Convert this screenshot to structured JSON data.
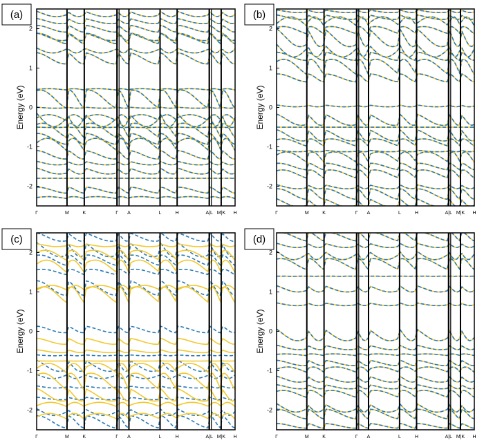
{
  "figure": {
    "colors": {
      "spin_up": "#f2c830",
      "spin_down": "#2a7ab5",
      "frame": "#000000"
    },
    "high_symmetry_points": [
      "Γ",
      "M",
      "K",
      "Γ",
      "A",
      "L",
      "H",
      "A|L",
      "M|K",
      "H"
    ]
  },
  "chart_data": [
    {
      "type": "line",
      "panel_label": "(a)",
      "ylabel": "Energy (eV)",
      "ylim": [
        -2.5,
        2.5
      ],
      "yticks": [
        "-2",
        "-1",
        "0",
        "1",
        "2"
      ],
      "xtick_labels": [
        "Γ",
        "M",
        "K",
        "Γ",
        "A",
        "L",
        "H",
        "A|L",
        "M|K",
        "H"
      ],
      "series": [
        {
          "values": [
            -2.3,
            -2.1,
            -1.8,
            -1.6,
            -1.4,
            -1.2,
            -1.0,
            -0.8,
            -0.6,
            -0.5,
            -0.3,
            -0.2,
            0.0,
            0.2,
            0.45,
            1.25,
            1.5,
            1.75,
            1.8,
            2.0,
            2.2,
            2.4
          ]
        }
      ]
    },
    {
      "type": "line",
      "panel_label": "(b)",
      "ylabel": "Energy (eV)",
      "ylim": [
        -2.5,
        2.5
      ],
      "yticks": [
        "-2",
        "-1",
        "0",
        "1",
        "2"
      ],
      "xtick_labels": [
        "Γ",
        "M",
        "K",
        "Γ",
        "A",
        "L",
        "H",
        "A|L",
        "M|K",
        "H"
      ],
      "series": [
        {
          "values": [
            -2.4,
            -2.2,
            -2.0,
            -1.7,
            -1.5,
            -1.3,
            -1.1,
            -0.9,
            -0.7,
            -0.5,
            -0.3,
            0.05,
            0.75,
            1.0,
            1.3,
            1.55,
            1.8,
            1.95,
            2.1,
            2.3,
            2.45
          ]
        }
      ]
    },
    {
      "type": "line",
      "panel_label": "(c)",
      "ylabel": "Energy (eV)",
      "ylim": [
        -2.5,
        2.5
      ],
      "yticks": [
        "-2",
        "-1",
        "0",
        "1",
        "2"
      ],
      "xtick_labels": [
        "Γ",
        "M",
        "K",
        "Γ",
        "A",
        "L",
        "H",
        "A|L",
        "M|K",
        "H"
      ],
      "series": [
        {
          "values": [
            -2.3,
            -2.0,
            -1.7,
            -1.4,
            -1.1,
            -0.85,
            -0.6,
            0.05,
            1.1,
            1.5,
            1.8,
            2.1,
            2.4
          ]
        },
        {
          "values": [
            -2.2,
            -1.9,
            -1.6,
            -1.3,
            -1.0,
            -0.75,
            -0.5,
            -0.25,
            0.9,
            1.05,
            1.6,
            1.9,
            2.2
          ]
        }
      ]
    },
    {
      "type": "line",
      "panel_label": "(d)",
      "ylabel": "Energy (eV)",
      "ylim": [
        -2.5,
        2.5
      ],
      "yticks": [
        "-2",
        "-1",
        "0",
        "1",
        "2"
      ],
      "xtick_labels": [
        "Γ",
        "M",
        "K",
        "Γ",
        "A",
        "L",
        "H",
        "A|L",
        "M|K",
        "H"
      ],
      "series": [
        {
          "values": [
            -2.4,
            -2.1,
            -1.9,
            -1.6,
            -1.4,
            -1.2,
            -1.0,
            -0.8,
            -0.6,
            -0.4,
            -0.05,
            0.7,
            1.1,
            1.4,
            1.7,
            2.0,
            2.2,
            2.4
          ]
        }
      ]
    }
  ]
}
